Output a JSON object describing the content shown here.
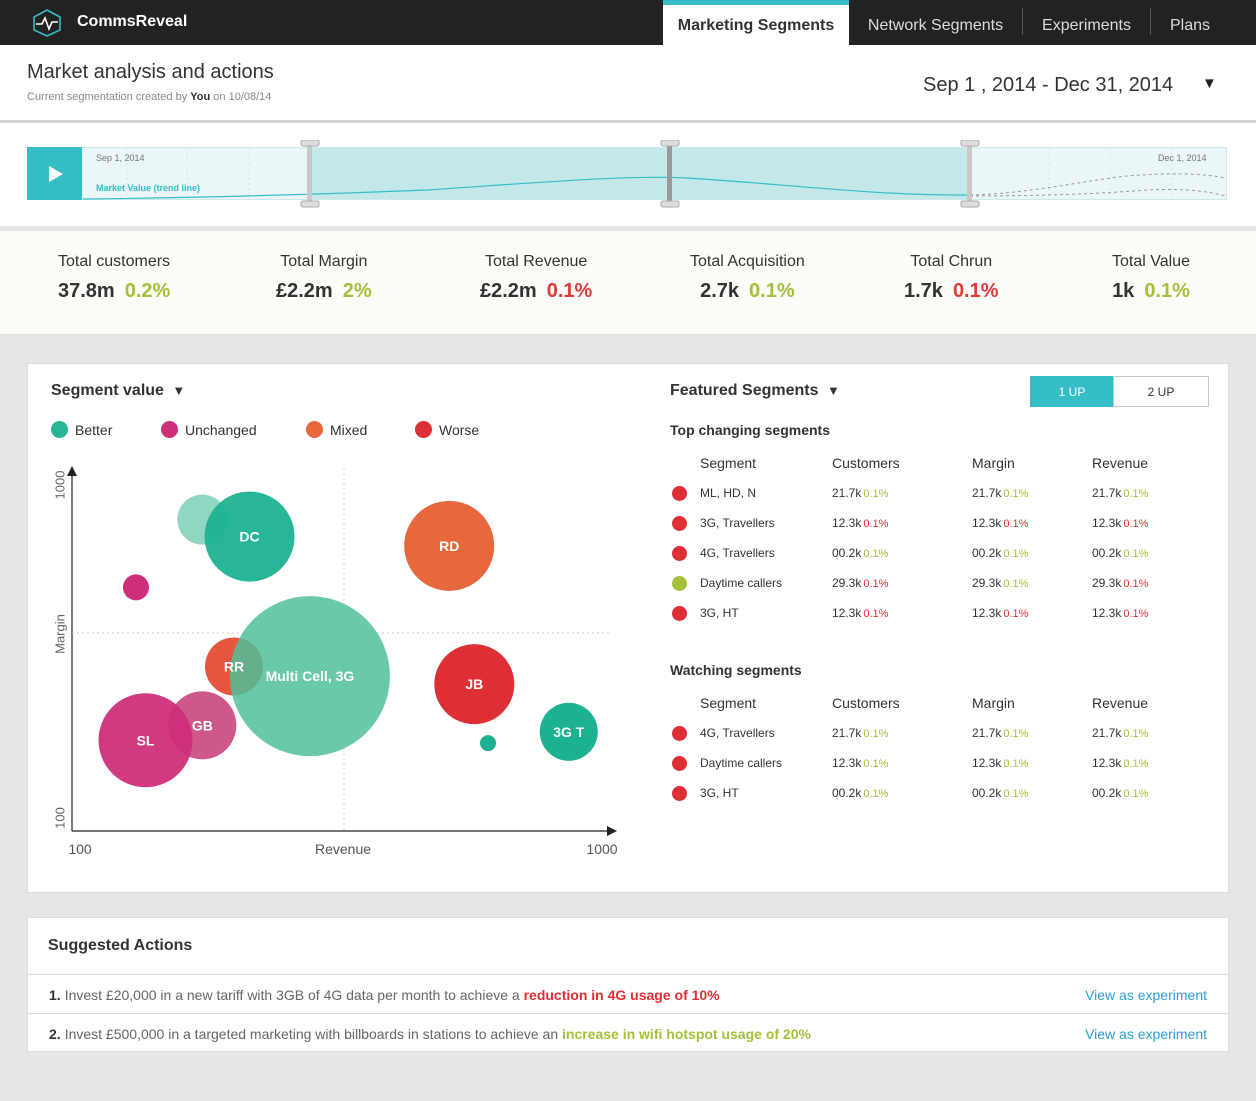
{
  "app": {
    "name": "CommsReveal"
  },
  "nav": {
    "tabs": [
      {
        "label": "Marketing Segments",
        "active": true
      },
      {
        "label": "Network Segments",
        "active": false
      },
      {
        "label": "Experiments",
        "active": false
      },
      {
        "label": "Plans",
        "active": false
      }
    ]
  },
  "header": {
    "title": "Market analysis and actions",
    "subtitle_prefix": "Current segmentation created by",
    "subtitle_user": "You",
    "subtitle_on": "on 10/08/14",
    "date_range": "Sep 1 , 2014 - Dec 31, 2014"
  },
  "timeline": {
    "start_label": "Sep 1, 2014",
    "end_label": "Dec 1, 2014",
    "trend_label": "Market Value (trend line)"
  },
  "kpis": [
    {
      "label": "Total customers",
      "value": "37.8m",
      "change": "0.2%",
      "trend": "up",
      "color": "#a3c13a"
    },
    {
      "label": "Total Margin",
      "value": "£2.2m",
      "change": "2%",
      "trend": "up",
      "color": "#a3c13a"
    },
    {
      "label": "Total Revenue",
      "value": "£2.2m",
      "change": "0.1%",
      "trend": "down",
      "color": "#e03a3a"
    },
    {
      "label": "Total Acquisition",
      "value": "2.7k",
      "change": "0.1%",
      "trend": "up",
      "color": "#a3c13a"
    },
    {
      "label": "Total Chrun",
      "value": "1.7k",
      "change": "0.1%",
      "trend": "down",
      "color": "#e03a3a"
    },
    {
      "label": "Total Value",
      "value": "1k",
      "change": "0.1%",
      "trend": "up",
      "color": "#a3c13a"
    }
  ],
  "segment_value": {
    "title": "Segment value",
    "legend": [
      {
        "label": "Better",
        "color": "#2bb597"
      },
      {
        "label": "Unchanged",
        "color": "#cf2e7a"
      },
      {
        "label": "Mixed",
        "color": "#e8683e"
      },
      {
        "label": "Worse",
        "color": "#df2f36"
      }
    ]
  },
  "chart_data": {
    "type": "scatter",
    "variant": "bubble",
    "xlabel": "Revenue",
    "ylabel": "Margin",
    "xlim": [
      100,
      1000
    ],
    "ylim": [
      100,
      1000
    ],
    "x_ticks": [
      "100",
      "1000"
    ],
    "y_ticks": [
      "100",
      "1000"
    ],
    "grid": false,
    "points": [
      {
        "label": "",
        "x": 318,
        "y": 872,
        "r": 25,
        "color": "#83d1bc",
        "opacity": 0.9
      },
      {
        "label": "DC",
        "x": 397,
        "y": 830,
        "r": 45,
        "color": "#1db192",
        "opacity": 0.95
      },
      {
        "label": "RD",
        "x": 731,
        "y": 807,
        "r": 45,
        "color": "#e8683e",
        "opacity": 1
      },
      {
        "label": "",
        "x": 207,
        "y": 704,
        "r": 13,
        "color": "#cf2e7a",
        "opacity": 1
      },
      {
        "label": "RR",
        "x": 371,
        "y": 508,
        "r": 29,
        "color": "#e8553e",
        "opacity": 1
      },
      {
        "label": "JB",
        "x": 773,
        "y": 464,
        "r": 40,
        "color": "#df2f36",
        "opacity": 1
      },
      {
        "label": "Multi Cell, 3G",
        "x": 498,
        "y": 484,
        "r": 80,
        "color": "#4fbf99",
        "opacity": 0.85
      },
      {
        "label": "GB",
        "x": 318,
        "y": 362,
        "r": 34,
        "color": "#c94a7f",
        "opacity": 0.92
      },
      {
        "label": "SL",
        "x": 223,
        "y": 325,
        "r": 47,
        "color": "#cf2e7a",
        "opacity": 0.95
      },
      {
        "label": "3G T",
        "x": 931,
        "y": 346,
        "r": 29,
        "color": "#1db192",
        "opacity": 1
      },
      {
        "label": "",
        "x": 796,
        "y": 318,
        "r": 8,
        "color": "#1db192",
        "opacity": 1
      }
    ]
  },
  "featured": {
    "title": "Featured Segments",
    "toggle": {
      "one_up": "1 UP",
      "two_up": "2 UP"
    },
    "columns": {
      "segment": "Segment",
      "customers": "Customers",
      "margin": "Margin",
      "revenue": "Revenue"
    },
    "top_title": "Top changing segments",
    "top_rows": [
      {
        "status_color": "#df2f36",
        "segment": "ML, HD, N",
        "customers": "21.7k",
        "customers_pct": "0.1%",
        "customers_color": "#a3c13a",
        "margin": "21.7k",
        "margin_pct": "0.1%",
        "margin_color": "#a3c13a",
        "revenue": "21.7k",
        "revenue_pct": "0.1%",
        "revenue_color": "#a3c13a"
      },
      {
        "status_color": "#df2f36",
        "segment": "3G, Travellers",
        "customers": "12.3k",
        "customers_pct": "0.1%",
        "customers_color": "#df2f36",
        "margin": "12.3k",
        "margin_pct": "0.1%",
        "margin_color": "#df2f36",
        "revenue": "12.3k",
        "revenue_pct": "0.1%",
        "revenue_color": "#df2f36"
      },
      {
        "status_color": "#df2f36",
        "segment": "4G, Travellers",
        "customers": "00.2k",
        "customers_pct": "0.1%",
        "customers_color": "#a3c13a",
        "margin": "00.2k",
        "margin_pct": "0.1%",
        "margin_color": "#a3c13a",
        "revenue": "00.2k",
        "revenue_pct": "0.1%",
        "revenue_color": "#a3c13a"
      },
      {
        "status_color": "#a3c13a",
        "segment": "Daytime callers",
        "customers": "29.3k",
        "customers_pct": "0.1%",
        "customers_color": "#df2f36",
        "margin": "29.3k",
        "margin_pct": "0.1%",
        "margin_color": "#a3c13a",
        "revenue": "29.3k",
        "revenue_pct": "0.1%",
        "revenue_color": "#df2f36"
      },
      {
        "status_color": "#df2f36",
        "segment": "3G, HT",
        "customers": "12.3k",
        "customers_pct": "0.1%",
        "customers_color": "#df2f36",
        "margin": "12.3k",
        "margin_pct": "0.1%",
        "margin_color": "#df2f36",
        "revenue": "12.3k",
        "revenue_pct": "0.1%",
        "revenue_color": "#df2f36"
      }
    ],
    "watch_title": "Watching segments",
    "watch_rows": [
      {
        "status_color": "#df2f36",
        "segment": "4G, Travellers",
        "customers": "21.7k",
        "customers_pct": "0.1%",
        "customers_color": "#a3c13a",
        "margin": "21.7k",
        "margin_pct": "0.1%",
        "margin_color": "#a3c13a",
        "revenue": "21.7k",
        "revenue_pct": "0.1%",
        "revenue_color": "#a3c13a"
      },
      {
        "status_color": "#df2f36",
        "segment": "Daytime callers",
        "customers": "12.3k",
        "customers_pct": "0.1%",
        "customers_color": "#a3c13a",
        "margin": "12.3k",
        "margin_pct": "0.1%",
        "margin_color": "#a3c13a",
        "revenue": "12.3k",
        "revenue_pct": "0.1%",
        "revenue_color": "#a3c13a"
      },
      {
        "status_color": "#df2f36",
        "segment": "3G, HT",
        "customers": "00.2k",
        "customers_pct": "0.1%",
        "customers_color": "#a3c13a",
        "margin": "00.2k",
        "margin_pct": "0.1%",
        "margin_color": "#a3c13a",
        "revenue": "00.2k",
        "revenue_pct": "0.1%",
        "revenue_color": "#a3c13a"
      }
    ]
  },
  "actions": {
    "title": "Suggested Actions",
    "items": [
      {
        "num": "1.",
        "text": "Invest £20,000 in a new tariff with 3GB of 4G data per month to achieve a",
        "highlight": "reduction in 4G usage of 10%",
        "highlight_color": "#df2f36",
        "link": "View as experiment"
      },
      {
        "num": "2.",
        "text": "Invest £500,000 in a targeted marketing with billboards in stations to achieve an",
        "highlight": "increase in wifi hotspot usage of 20%",
        "highlight_color": "#a3c13a",
        "link": "View as experiment"
      }
    ]
  },
  "colors": {
    "accent": "#35bec5",
    "positive": "#a3c13a",
    "negative": "#df2f36",
    "link": "#2a9fd6"
  }
}
